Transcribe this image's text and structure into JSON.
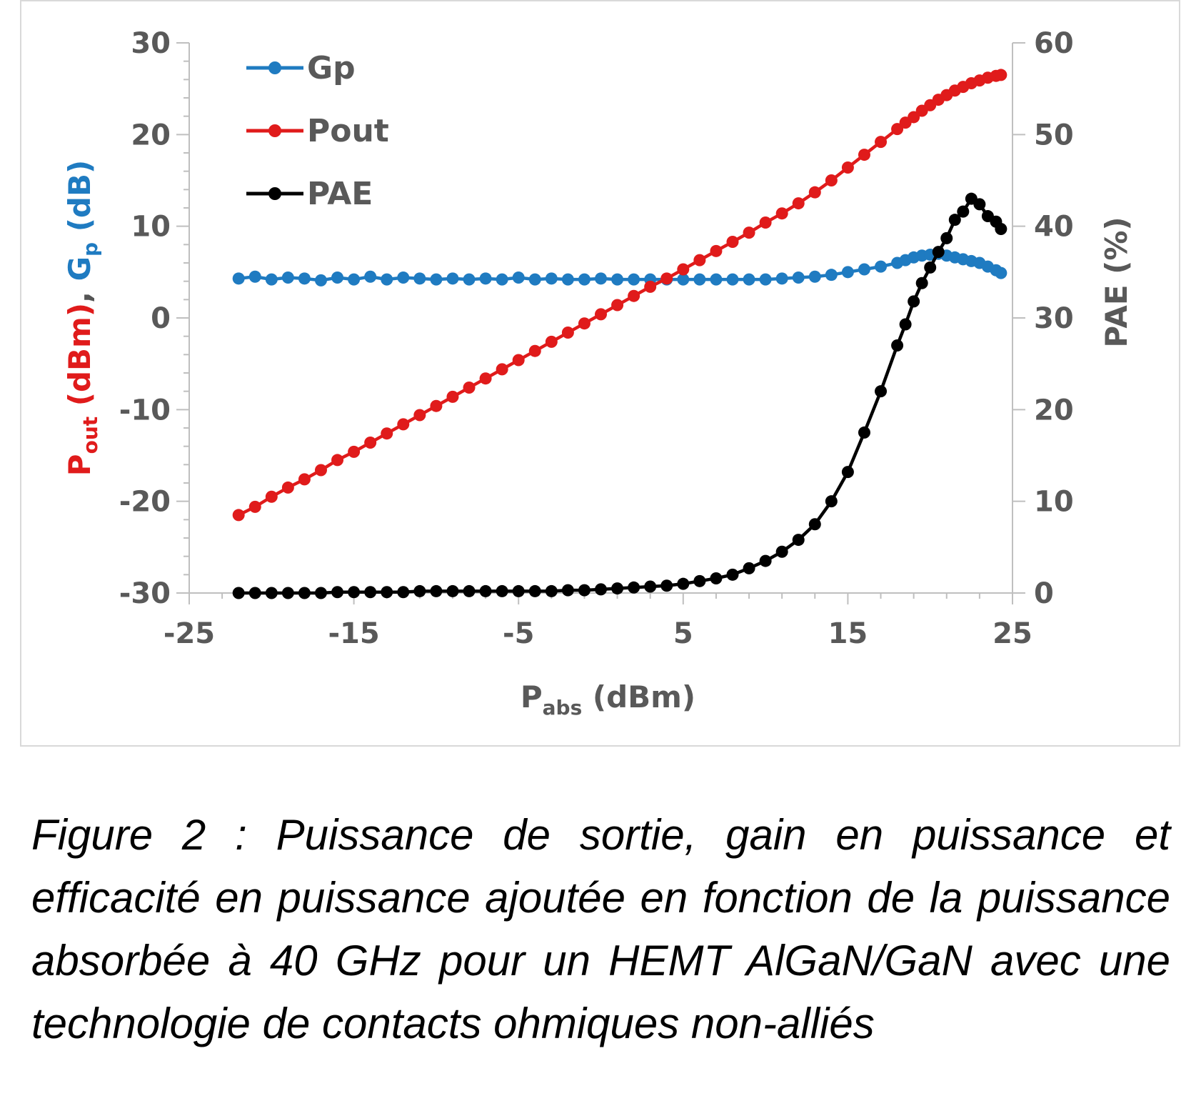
{
  "caption": "Figure 2 : Puissance de sortie, gain en puissance et efficacité en puissance ajoutée en fonction de la puissance absorbée à 40 GHz pour un HEMT AlGaN/GaN avec une technologie de contacts ohmiques non-alliés",
  "chart_data": {
    "type": "line",
    "title": "",
    "xlabel": {
      "main": "P",
      "sub": "abs",
      "unit": " (dBm)"
    },
    "ylabel_left": {
      "parts": [
        {
          "text": "P",
          "sub": "out",
          "after": " (dBm)",
          "color": "#e01b1b"
        },
        {
          "text": ", ",
          "color": "#555555"
        },
        {
          "text": "G",
          "sub": "p",
          "after": " (dB)",
          "color": "#1f7bc1"
        }
      ]
    },
    "ylabel_right": "PAE (%)",
    "xlim": [
      -25,
      25
    ],
    "ylim_left": [
      -30,
      30
    ],
    "ylim_right": [
      0,
      60
    ],
    "x_ticks": [
      "-25",
      "-15",
      "-5",
      "5",
      "15",
      "25"
    ],
    "y_left_ticks": [
      "-30",
      "-20",
      "-10",
      "0",
      "10",
      "20",
      "30"
    ],
    "y_right_ticks": [
      "0",
      "10",
      "20",
      "30",
      "40",
      "50",
      "60"
    ],
    "legend_position": "top-left",
    "series": [
      {
        "name": "Gp",
        "axis": "left",
        "color": "#1f7bc1",
        "x": [
          -22,
          -21,
          -20,
          -19,
          -18,
          -17,
          -16,
          -15,
          -14,
          -13,
          -12,
          -11,
          -10,
          -9,
          -8,
          -7,
          -6,
          -5,
          -4,
          -3,
          -2,
          -1,
          0,
          1,
          2,
          3,
          4,
          5,
          6,
          7,
          8,
          9,
          10,
          11,
          12,
          13,
          14,
          15,
          16,
          17,
          18,
          18.5,
          19,
          19.5,
          20,
          20.5,
          21,
          21.5,
          22,
          22.5,
          23,
          23.5,
          24,
          24.3
        ],
        "values": [
          4.3,
          4.5,
          4.2,
          4.4,
          4.3,
          4.1,
          4.4,
          4.2,
          4.5,
          4.2,
          4.4,
          4.3,
          4.2,
          4.3,
          4.2,
          4.3,
          4.2,
          4.4,
          4.2,
          4.3,
          4.2,
          4.2,
          4.3,
          4.2,
          4.2,
          4.2,
          4.2,
          4.2,
          4.2,
          4.2,
          4.2,
          4.2,
          4.2,
          4.3,
          4.4,
          4.5,
          4.7,
          5.0,
          5.3,
          5.6,
          6.0,
          6.3,
          6.6,
          6.8,
          6.9,
          7.0,
          6.8,
          6.6,
          6.4,
          6.2,
          6.0,
          5.6,
          5.2,
          4.9
        ]
      },
      {
        "name": "Pout",
        "axis": "left",
        "color": "#e01b1b",
        "x": [
          -22,
          -21,
          -20,
          -19,
          -18,
          -17,
          -16,
          -15,
          -14,
          -13,
          -12,
          -11,
          -10,
          -9,
          -8,
          -7,
          -6,
          -5,
          -4,
          -3,
          -2,
          -1,
          0,
          1,
          2,
          3,
          4,
          5,
          6,
          7,
          8,
          9,
          10,
          11,
          12,
          13,
          14,
          15,
          16,
          17,
          18,
          18.5,
          19,
          19.5,
          20,
          20.5,
          21,
          21.5,
          22,
          22.5,
          23,
          23.5,
          24,
          24.3
        ],
        "values": [
          -21.5,
          -20.6,
          -19.5,
          -18.5,
          -17.6,
          -16.6,
          -15.5,
          -14.6,
          -13.6,
          -12.6,
          -11.6,
          -10.6,
          -9.6,
          -8.6,
          -7.6,
          -6.6,
          -5.6,
          -4.6,
          -3.6,
          -2.6,
          -1.6,
          -0.6,
          0.4,
          1.4,
          2.4,
          3.4,
          4.3,
          5.3,
          6.3,
          7.3,
          8.3,
          9.3,
          10.4,
          11.4,
          12.5,
          13.7,
          15.0,
          16.4,
          17.8,
          19.2,
          20.6,
          21.3,
          21.9,
          22.6,
          23.2,
          23.8,
          24.3,
          24.8,
          25.2,
          25.6,
          25.9,
          26.2,
          26.4,
          26.5
        ]
      },
      {
        "name": "PAE",
        "axis": "right",
        "color": "#000000",
        "x": [
          -22,
          -21,
          -20,
          -19,
          -18,
          -17,
          -16,
          -15,
          -14,
          -13,
          -12,
          -11,
          -10,
          -9,
          -8,
          -7,
          -6,
          -5,
          -4,
          -3,
          -2,
          -1,
          0,
          1,
          2,
          3,
          4,
          5,
          6,
          7,
          8,
          9,
          10,
          11,
          12,
          13,
          14,
          15,
          16,
          17,
          18,
          18.5,
          19,
          19.5,
          20,
          20.5,
          21,
          21.5,
          22,
          22.5,
          23,
          23.5,
          24,
          24.3
        ],
        "values": [
          0,
          0,
          0,
          0,
          0,
          0,
          0.1,
          0.1,
          0.1,
          0.1,
          0.1,
          0.2,
          0.2,
          0.2,
          0.2,
          0.2,
          0.2,
          0.2,
          0.2,
          0.2,
          0.3,
          0.3,
          0.4,
          0.5,
          0.6,
          0.7,
          0.8,
          1.0,
          1.3,
          1.6,
          2.0,
          2.7,
          3.5,
          4.5,
          5.8,
          7.5,
          10.0,
          13.2,
          17.5,
          22.0,
          27.0,
          29.3,
          31.8,
          33.8,
          35.5,
          37.2,
          38.7,
          40.7,
          41.6,
          43.0,
          42.4,
          41.1,
          40.5,
          39.7
        ]
      }
    ]
  }
}
